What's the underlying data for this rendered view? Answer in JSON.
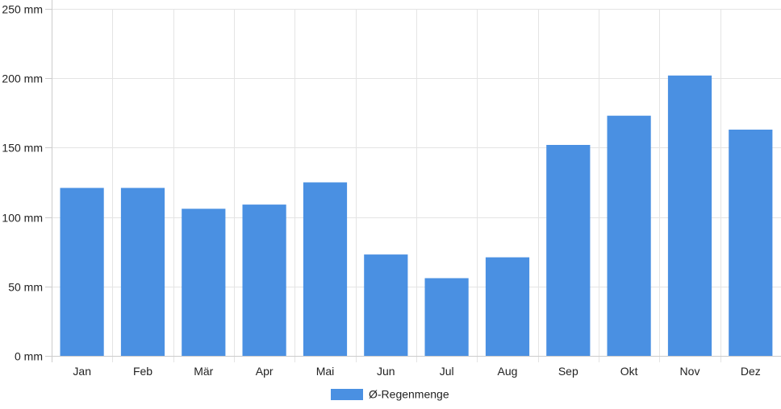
{
  "chart_data": {
    "type": "bar",
    "categories": [
      "Jan",
      "Feb",
      "Mär",
      "Apr",
      "Mai",
      "Jun",
      "Jul",
      "Aug",
      "Sep",
      "Okt",
      "Nov",
      "Dez"
    ],
    "series": [
      {
        "name": "Ø-Regenmenge",
        "values": [
          121,
          121,
          106,
          109,
          125,
          73,
          56,
          71,
          152,
          173,
          202,
          163
        ],
        "color": "#4a90e2"
      }
    ],
    "y_ticks": [
      "0 mm",
      "50 mm",
      "100 mm",
      "150 mm",
      "200 mm",
      "250 mm"
    ],
    "ylim": [
      0,
      250
    ],
    "y_step": 50,
    "grid": true,
    "legend_position": "bottom-center",
    "title": "",
    "xlabel": "",
    "ylabel": ""
  }
}
